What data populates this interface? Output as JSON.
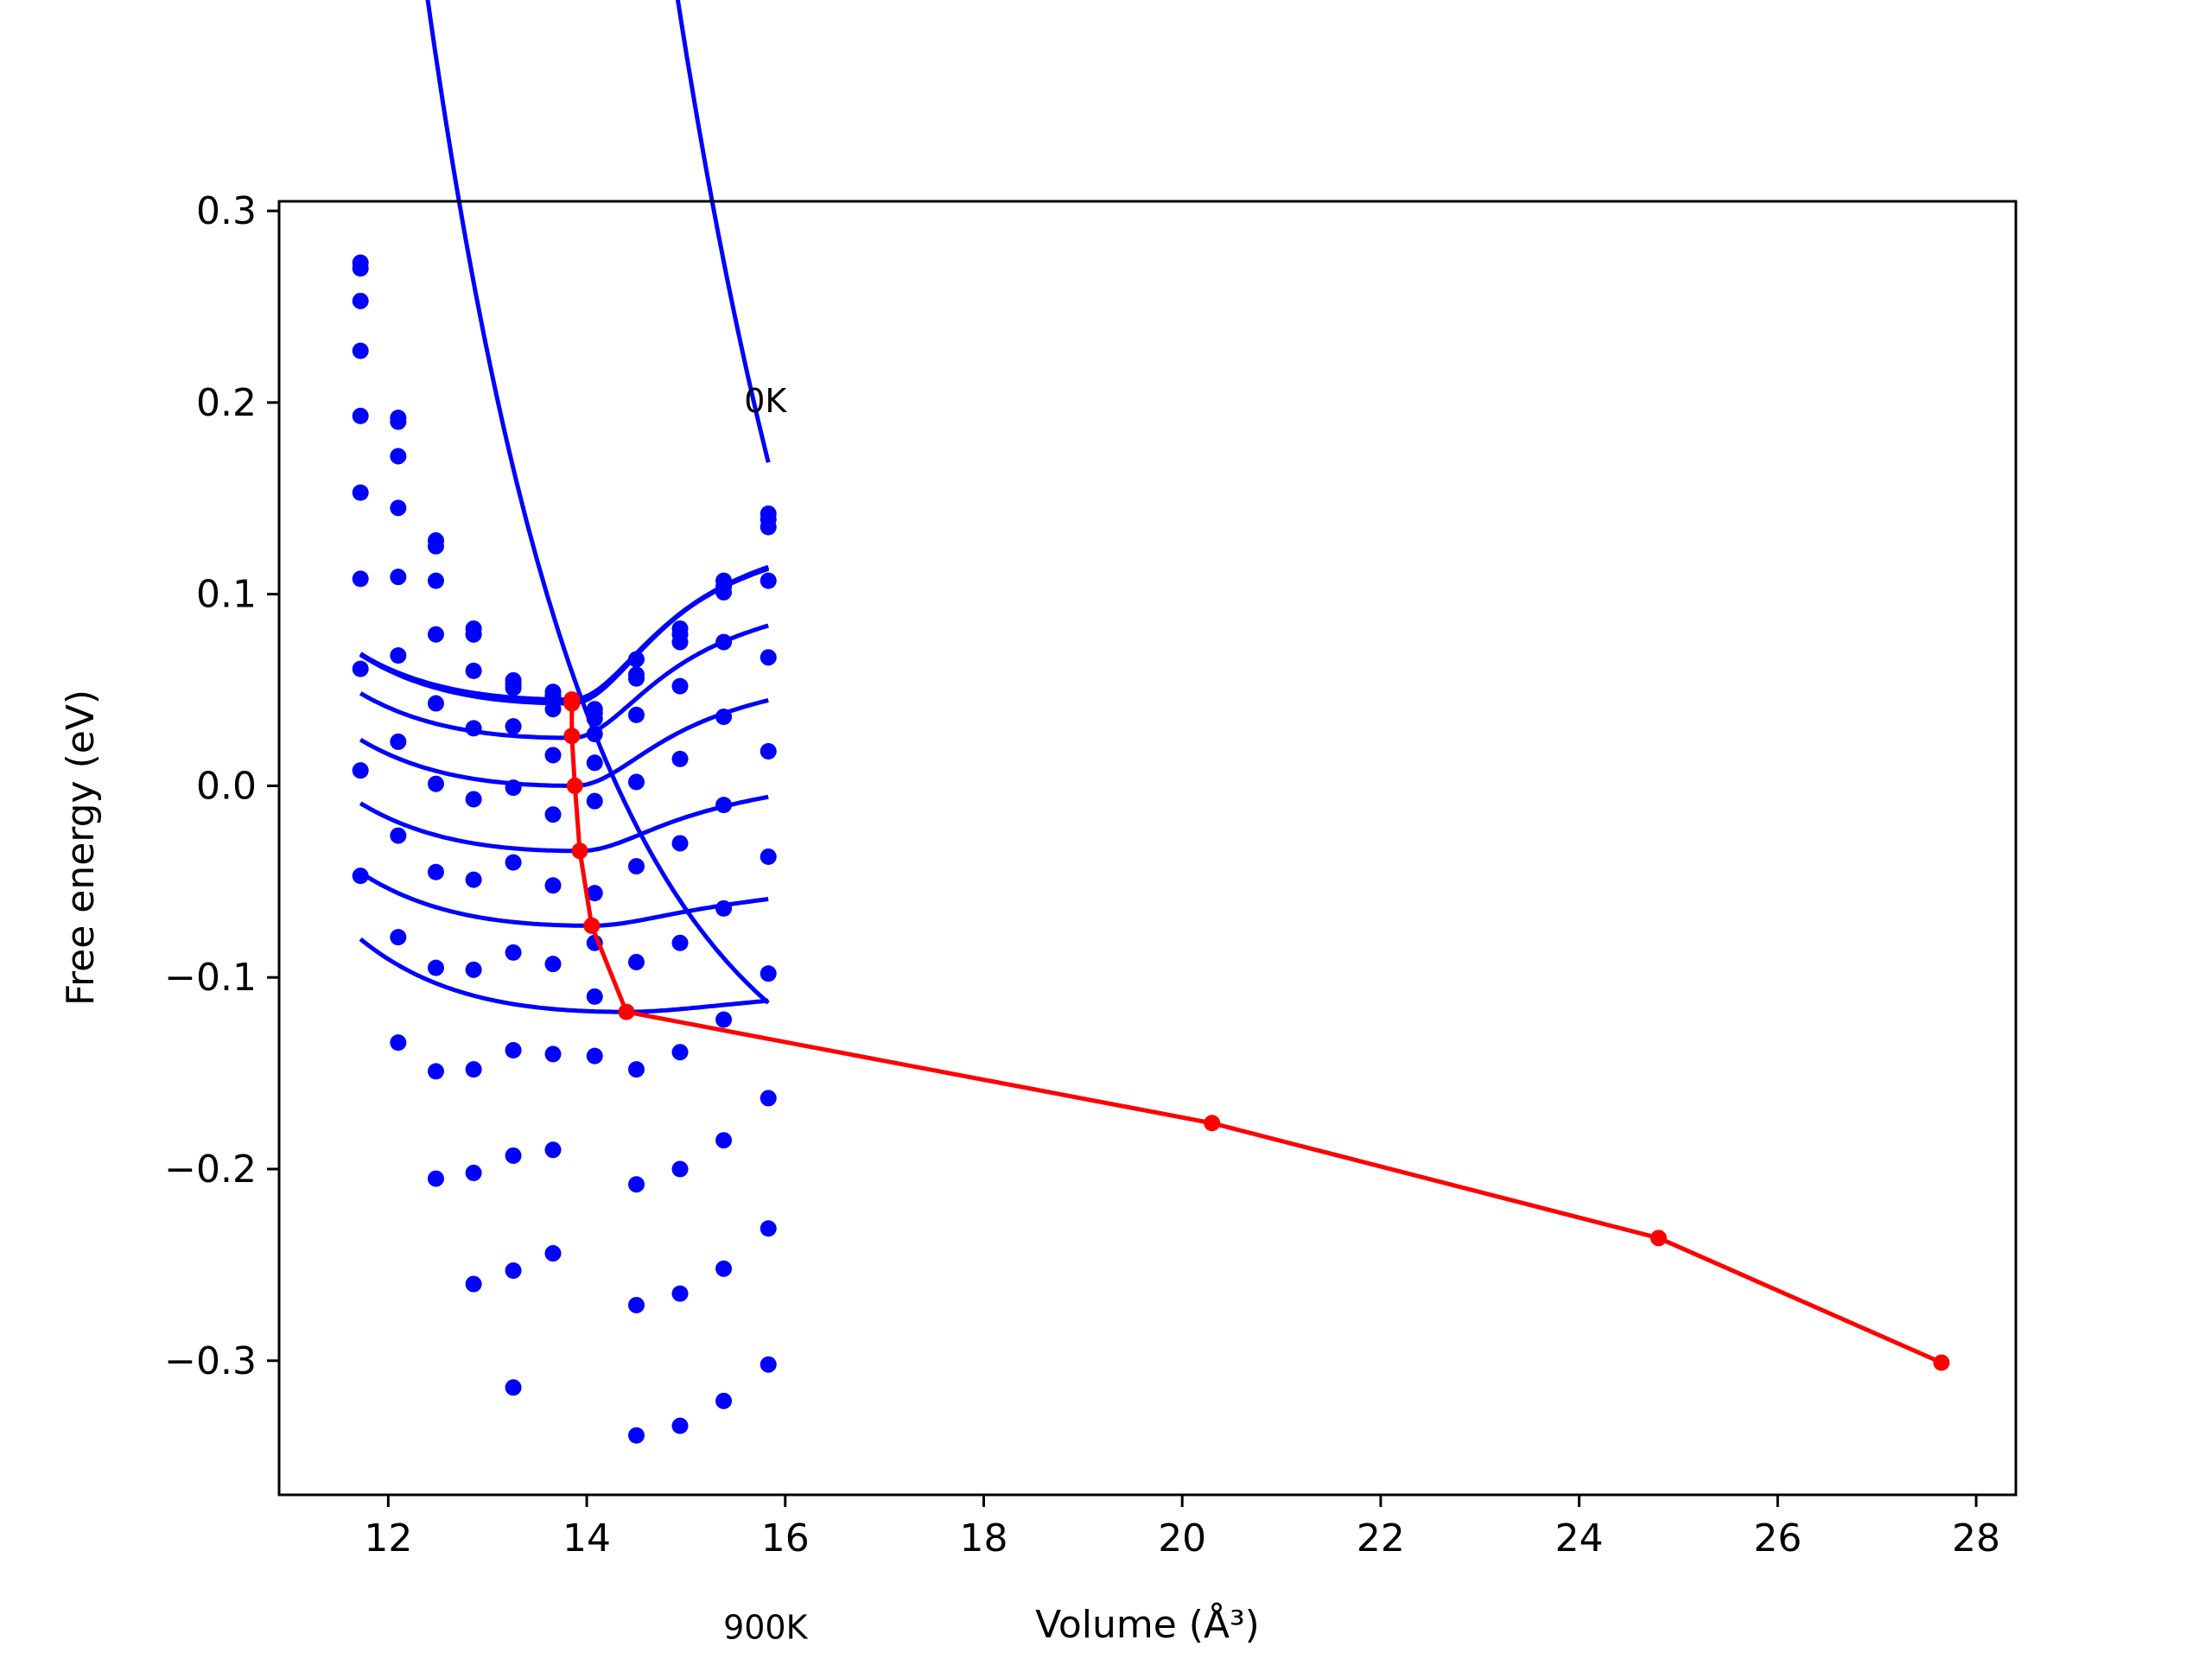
{
  "chart_data": {
    "type": "line",
    "xlabel": "Volume (Å³)",
    "ylabel": "Free energy (eV)",
    "xlim": [
      10.9,
      28.4
    ],
    "ylim": [
      -0.37,
      0.305
    ],
    "xticks": [
      {
        "v": 12,
        "label": "12"
      },
      {
        "v": 14,
        "label": "14"
      },
      {
        "v": 16,
        "label": "16"
      },
      {
        "v": 18,
        "label": "18"
      },
      {
        "v": 20,
        "label": "20"
      },
      {
        "v": 22,
        "label": "22"
      },
      {
        "v": 24,
        "label": "24"
      },
      {
        "v": 26,
        "label": "26"
      },
      {
        "v": 28,
        "label": "28"
      }
    ],
    "yticks": [
      {
        "v": 0.3,
        "label": "0.3"
      },
      {
        "v": 0.2,
        "label": "0.2"
      },
      {
        "v": 0.1,
        "label": "0.1"
      },
      {
        "v": 0.0,
        "label": "0.0"
      },
      {
        "v": -0.1,
        "label": "−0.1"
      },
      {
        "v": -0.2,
        "label": "−0.2"
      },
      {
        "v": -0.3,
        "label": "−0.3"
      }
    ],
    "annotations": [
      {
        "text": "0K",
        "x": 15.8,
        "y": 0.195
      },
      {
        "text": "900K",
        "x": 15.8,
        "y": -0.445
      }
    ],
    "grid": false,
    "legend": "none",
    "colors": {
      "curves": "#0000ff",
      "minimum_path": "#ff0000"
    },
    "volumes": [
      11.72,
      12.1,
      12.48,
      12.86,
      13.26,
      13.66,
      14.08,
      14.5,
      14.94,
      15.38,
      15.83
    ],
    "series": [
      {
        "y": [
          0.273,
          0.192,
          0.128,
          0.082,
          0.055,
          0.049,
          0.04,
          0.058,
          0.082,
          0.107,
          0.142
        ],
        "fit": {
          "V0": 13.85,
          "F0": 0.043,
          "A": 0.06,
          "p": 6,
          "B": 0.081
        }
      },
      {
        "y": [
          0.27,
          0.19,
          0.125,
          0.079,
          0.053,
          0.047,
          0.038,
          0.056,
          0.079,
          0.104,
          0.139
        ],
        "fit": {
          "V0": 13.85,
          "F0": 0.044,
          "A": 0.059,
          "p": 6,
          "B": 0.08
        }
      },
      {
        "y": [
          0.253,
          0.172,
          0.107,
          0.079,
          0.051,
          0.04,
          0.035,
          0.066,
          0.075,
          0.101,
          0.135
        ],
        "fit": {
          "V0": 13.85,
          "F0": 0.045,
          "A": 0.056,
          "p": 6,
          "B": 0.078
        }
      },
      {
        "y": [
          0.227,
          0.145,
          0.079,
          0.06,
          0.031,
          0.016,
          0.027,
          0.037,
          0.052,
          0.075,
          0.107
        ],
        "fit": {
          "V0": 13.85,
          "F0": 0.025,
          "A": 0.055,
          "p": 6,
          "B": 0.066
        }
      },
      {
        "y": [
          0.193,
          0.109,
          0.043,
          0.03,
          -0.001,
          -0.015,
          0.012,
          0.002,
          0.014,
          0.036,
          0.067
        ],
        "fit": {
          "V0": 13.88,
          "F0": 0.0,
          "A": 0.055,
          "p": 6,
          "B": 0.049
        }
      },
      {
        "y": [
          0.153,
          0.068,
          0.001,
          -0.007,
          -0.04,
          -0.052,
          -0.008,
          -0.042,
          -0.03,
          -0.01,
          0.018
        ],
        "fit": {
          "V0": 13.93,
          "F0": -0.034,
          "A": 0.054,
          "p": 6,
          "B": 0.029
        }
      },
      {
        "y": [
          0.108,
          0.023,
          -0.045,
          -0.049,
          -0.087,
          -0.093,
          -0.056,
          -0.092,
          -0.082,
          -0.064,
          -0.037
        ],
        "fit": {
          "V0": 14.05,
          "F0": -0.073,
          "A": 0.053,
          "p": 6,
          "B": 0.012
        }
      },
      {
        "y": [
          0.061,
          -0.026,
          -0.095,
          -0.096,
          -0.138,
          -0.14,
          -0.082,
          -0.148,
          -0.139,
          -0.122,
          -0.098
        ],
        "fit": {
          "V0": 14.4,
          "F0": -0.118,
          "A": 0.052,
          "p": 6,
          "B": 0.004
        }
      },
      {
        "y": [
          0.008,
          -0.079,
          -0.149,
          -0.148,
          -0.193,
          -0.19,
          -0.141,
          -0.208,
          -0.2,
          -0.185,
          -0.163
        ],
        "fit": {
          "V0": 20.3,
          "F0": -0.176,
          "A": 0.051,
          "p": 6,
          "B": 0.0
        }
      },
      {
        "y": [
          -0.047,
          -0.134,
          -0.205,
          -0.202,
          -0.253,
          -0.244,
          -0.11,
          -0.271,
          -0.265,
          -0.252,
          -0.231
        ],
        "fit": {
          "V0": 24.8,
          "F0": -0.236,
          "A": 0.05,
          "p": 6,
          "B": 0.0
        }
      },
      {
        "y": [
          null,
          null,
          null,
          -0.26,
          -0.314,
          null,
          null,
          -0.339,
          -0.334,
          -0.321,
          -0.302
        ],
        "fit": {
          "V0": 27.65,
          "F0": -0.301,
          "A": 0.05,
          "p": 6,
          "B": 0.0
        }
      }
    ],
    "minimum_path": {
      "x": [
        13.85,
        13.85,
        13.85,
        13.88,
        13.93,
        14.05,
        14.4,
        20.3,
        24.8,
        27.65
      ],
      "y": [
        0.045,
        0.043,
        0.026,
        0.0,
        -0.034,
        -0.073,
        -0.118,
        -0.176,
        -0.236,
        -0.301
      ]
    }
  }
}
